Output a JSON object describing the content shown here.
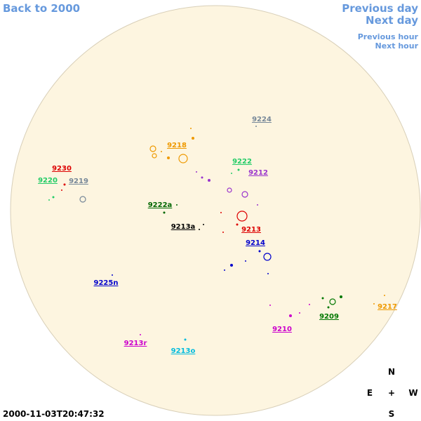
{
  "navigation": {
    "back": "Back to 2000",
    "previous_day": "Previous day",
    "next_day": "Next day",
    "previous_hour": "Previous hour",
    "next_hour": "Next hour"
  },
  "regions": [
    {
      "label": "9224",
      "color": "#778899"
    },
    {
      "label": "9218",
      "color": "#ee9900"
    },
    {
      "label": "9222",
      "color": "#22cc66"
    },
    {
      "label": "9212",
      "color": "#9933cc"
    },
    {
      "label": "9230",
      "color": "#dd0000"
    },
    {
      "label": "9220",
      "color": "#22cc66"
    },
    {
      "label": "9219",
      "color": "#778899"
    },
    {
      "label": "9222a",
      "color": "#006600"
    },
    {
      "label": "9213a",
      "color": "#000000"
    },
    {
      "label": "9213",
      "color": "#dd0000"
    },
    {
      "label": "9214",
      "color": "#0000cc"
    },
    {
      "label": "9225n",
      "color": "#0000cc"
    },
    {
      "label": "9217",
      "color": "#ee9900"
    },
    {
      "label": "9209",
      "color": "#007700"
    },
    {
      "label": "9210",
      "color": "#cc00cc"
    },
    {
      "label": "9213r",
      "color": "#cc00cc"
    },
    {
      "label": "9213o",
      "color": "#00bbdd"
    }
  ],
  "compass": {
    "north": "N",
    "east": "E",
    "center": "+",
    "west": "W",
    "south": "S"
  },
  "timestamp": "2000-11-03T20:47:32"
}
